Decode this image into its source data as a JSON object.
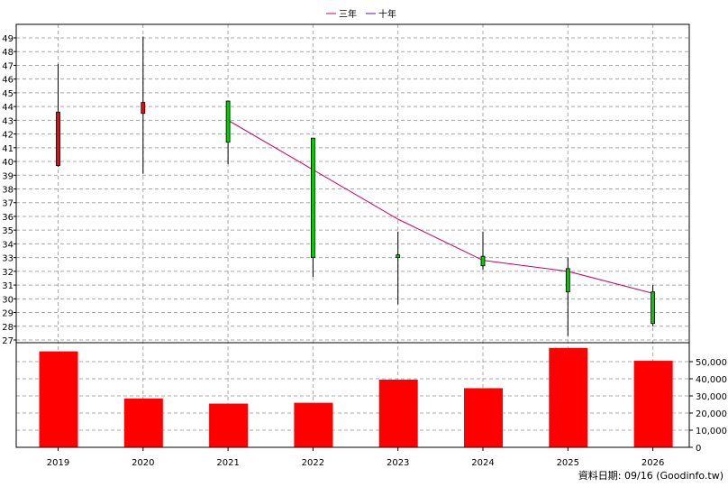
{
  "chart_data": {
    "type": "candlestick+bar",
    "categories": [
      "2019",
      "2020",
      "2021",
      "2022",
      "2023",
      "2024",
      "2025",
      "2026"
    ],
    "legend": [
      {
        "name": "三年",
        "color": "#cc0066"
      },
      {
        "name": "十年",
        "color": "#6a0dad"
      }
    ],
    "legend_position": "top-center",
    "grid": true,
    "candles": [
      {
        "year": "2019",
        "open": 39.7,
        "close": 43.6,
        "high": 47.1,
        "low": 39.6
      },
      {
        "year": "2020",
        "open": 43.5,
        "close": 44.3,
        "high": 49.1,
        "low": 39.1
      },
      {
        "year": "2021",
        "open": 44.4,
        "close": 41.4,
        "high": 44.4,
        "low": 39.8
      },
      {
        "year": "2022",
        "open": 41.7,
        "close": 33.0,
        "high": 41.7,
        "low": 31.6
      },
      {
        "year": "2023",
        "open": 33.2,
        "close": 33.1,
        "high": 34.9,
        "low": 29.6
      },
      {
        "year": "2024",
        "open": 33.1,
        "close": 32.4,
        "high": 34.9,
        "low": 32.1
      },
      {
        "year": "2025",
        "open": 32.2,
        "close": 30.5,
        "high": 33.0,
        "low": 27.3
      },
      {
        "year": "2026",
        "open": 30.5,
        "close": 28.2,
        "high": 31.0,
        "low": 28.0
      }
    ],
    "up_color": "#ff0000",
    "down_color": "#00cc00",
    "ma_series": [
      {
        "name": "三年",
        "x": [
          "2021",
          "2023",
          "2024",
          "2025",
          "2026"
        ],
        "values": [
          43.0,
          35.8,
          32.8,
          32.0,
          30.4
        ]
      }
    ],
    "price_axis": {
      "min": 27,
      "max": 49,
      "ticks": [
        27,
        28,
        29,
        30,
        31,
        32,
        33,
        34,
        35,
        36,
        37,
        38,
        39,
        40,
        41,
        42,
        43,
        44,
        45,
        46,
        47,
        48,
        49
      ]
    },
    "volume": {
      "values": [
        56000,
        28500,
        25500,
        26000,
        39500,
        34500,
        58000,
        50500
      ],
      "color": "#ff0000",
      "axis": {
        "min": 0,
        "max": 60000,
        "ticks": [
          0,
          10000,
          20000,
          30000,
          40000,
          50000
        ],
        "tick_labels": [
          "0",
          "10,000",
          "20,000",
          "30,000",
          "40,000",
          "50,000"
        ]
      }
    }
  },
  "footer": {
    "source": "資料日期: 09/16 (Goodinfo.tw)"
  }
}
